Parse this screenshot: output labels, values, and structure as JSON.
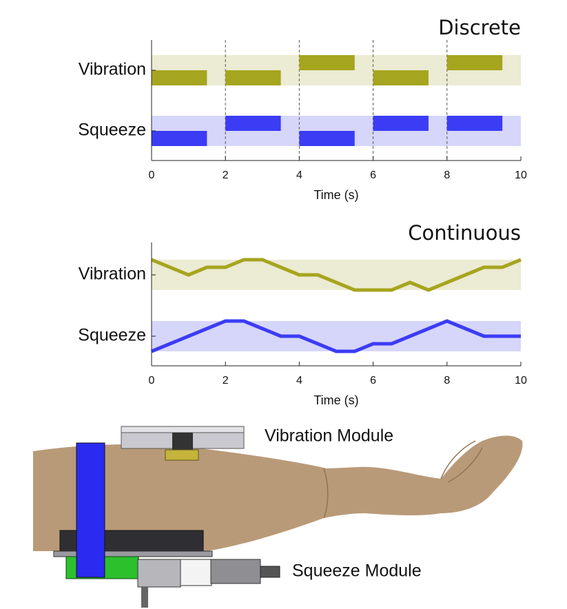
{
  "chart_data": [
    {
      "type": "segment",
      "title": "Discrete",
      "xlabel": "Time (s)",
      "xlim": [
        0,
        10
      ],
      "xticks": [
        0,
        2,
        4,
        6,
        8,
        10
      ],
      "grid": true,
      "band": [
        -1,
        1
      ],
      "duration": 1.5,
      "x": [
        0,
        2,
        4,
        6,
        8
      ],
      "series": [
        {
          "name": "Vibration",
          "color": "#a6a51f",
          "band_color": "#ecebd3",
          "values": [
            -0.5,
            -0.5,
            0.5,
            -0.5,
            0.5
          ]
        },
        {
          "name": "Squeeze",
          "color": "#3c3cf5",
          "band_color": "#d6d6fb",
          "values": [
            -0.5,
            0.5,
            -0.5,
            0.5,
            0.5
          ]
        }
      ]
    },
    {
      "type": "line",
      "title": "Continuous",
      "xlabel": "Time (s)",
      "xlim": [
        0,
        10
      ],
      "xticks": [
        0,
        2,
        4,
        6,
        8,
        10
      ],
      "grid": false,
      "band": [
        -1,
        1
      ],
      "x": [
        0,
        0.5,
        1,
        1.5,
        2,
        2.5,
        3,
        3.5,
        4,
        4.5,
        5,
        5.5,
        6,
        6.5,
        7,
        7.5,
        8,
        8.5,
        9,
        9.5,
        10
      ],
      "series": [
        {
          "name": "Vibration",
          "color": "#a6a51f",
          "band_color": "#ecebd3",
          "values": [
            1,
            0.5,
            0,
            0.5,
            0.5,
            1,
            1,
            0.5,
            0,
            0,
            -0.5,
            -1,
            -1,
            -1,
            -0.5,
            -1,
            -0.5,
            0,
            0.5,
            0.5,
            1
          ]
        },
        {
          "name": "Squeeze",
          "color": "#3c3cf5",
          "band_color": "#d6d6fb",
          "values": [
            -1,
            -0.5,
            0,
            0.5,
            1,
            1,
            0.5,
            0,
            0,
            -0.5,
            -1,
            -1,
            -0.5,
            -0.5,
            0,
            0.5,
            1,
            0.5,
            0,
            0,
            0
          ]
        }
      ]
    }
  ],
  "illustration": {
    "labels": [
      "Vibration Module",
      "Squeeze Module"
    ]
  }
}
